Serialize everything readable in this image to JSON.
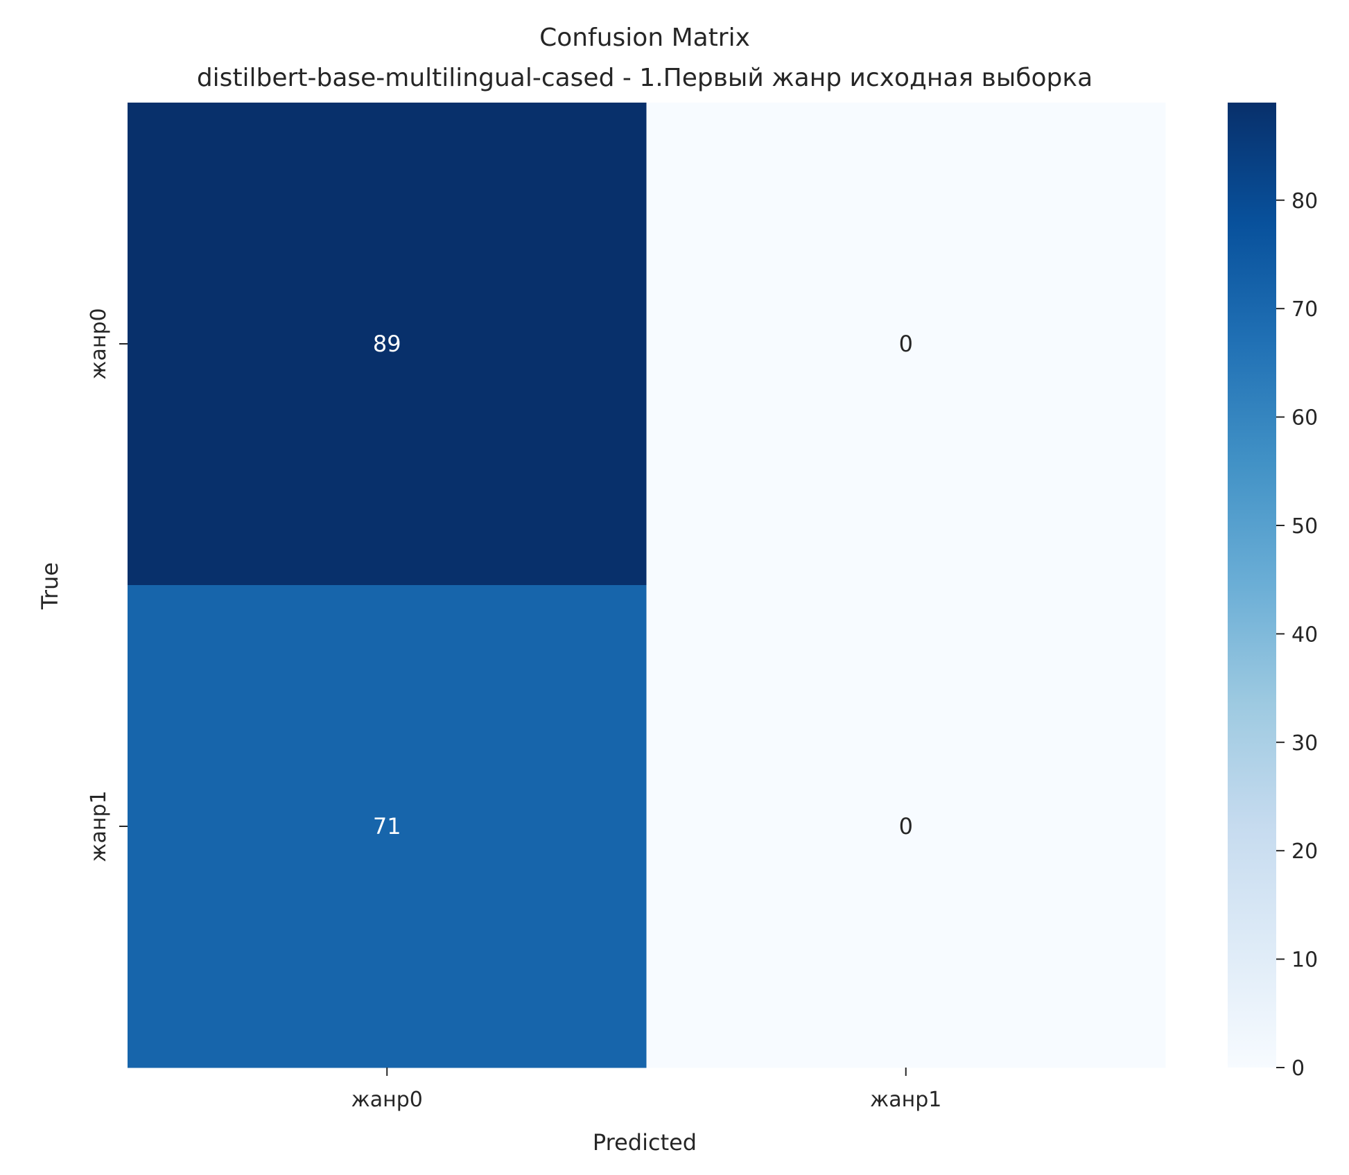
{
  "chart_data": {
    "type": "heatmap",
    "title": "Confusion Matrix",
    "subtitle": "distilbert-base-multilingual-cased - 1.Первый жанр исходная выборка",
    "xlabel": "Predicted",
    "ylabel": "True",
    "x_categories": [
      "жанр0",
      "жанр1"
    ],
    "y_categories": [
      "жанр0",
      "жанр1"
    ],
    "values": [
      [
        89,
        0
      ],
      [
        71,
        0
      ]
    ],
    "colorbar": {
      "min": 0,
      "max": 89,
      "ticks": [
        0,
        10,
        20,
        30,
        40,
        50,
        60,
        70,
        80
      ],
      "colormap": "Blues"
    },
    "grid": false
  },
  "colors": {
    "blues_low": "#f7fbff",
    "blues_high": "#08306b",
    "annotation_dark": "#262626",
    "annotation_light": "#ffffff"
  }
}
